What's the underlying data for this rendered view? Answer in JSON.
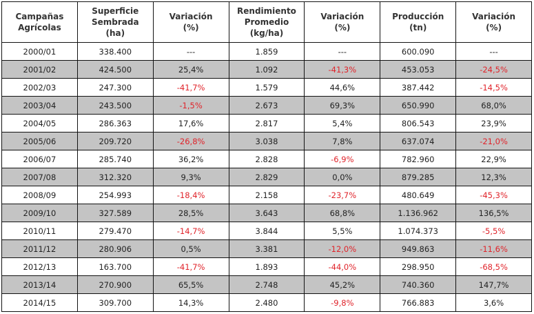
{
  "table": {
    "headers": [
      [
        "Campañas",
        "Agrícolas"
      ],
      [
        "Superficie",
        "Sembrada",
        "(ha)"
      ],
      [
        "Variación",
        "(%)"
      ],
      [
        "Rendimiento",
        "Promedio",
        "(kg/ha)"
      ],
      [
        "Variación",
        "(%)"
      ],
      [
        "Producción",
        "(tn)"
      ],
      [
        "Variación",
        "(%)"
      ]
    ],
    "colors": {
      "negative": "#e0232a",
      "stripe": "#c4c4c4"
    },
    "rows": [
      [
        "2000/01",
        "338.400",
        "---",
        "1.859",
        "---",
        "600.090",
        "---"
      ],
      [
        "2001/02",
        "424.500",
        "25,4%",
        "1.092",
        "-41,3%",
        "453.053",
        "-24,5%"
      ],
      [
        "2002/03",
        "247.300",
        "-41,7%",
        "1.579",
        "44,6%",
        "387.442",
        "-14,5%"
      ],
      [
        "2003/04",
        "243.500",
        "-1,5%",
        "2.673",
        "69,3%",
        "650.990",
        "68,0%"
      ],
      [
        "2004/05",
        "286.363",
        "17,6%",
        "2.817",
        "5,4%",
        "806.543",
        "23,9%"
      ],
      [
        "2005/06",
        "209.720",
        "-26,8%",
        "3.038",
        "7,8%",
        "637.074",
        "-21,0%"
      ],
      [
        "2006/07",
        "285.740",
        "36,2%",
        "2.828",
        "-6,9%",
        "782.960",
        "22,9%"
      ],
      [
        "2007/08",
        "312.320",
        "9,3%",
        "2.829",
        "0,0%",
        "879.285",
        "12,3%"
      ],
      [
        "2008/09",
        "254.993",
        "-18,4%",
        "2.158",
        "-23,7%",
        "480.649",
        "-45,3%"
      ],
      [
        "2009/10",
        "327.589",
        "28,5%",
        "3.643",
        "68,8%",
        "1.136.962",
        "136,5%"
      ],
      [
        "2010/11",
        "279.470",
        "-14,7%",
        "3.844",
        "5,5%",
        "1.074.373",
        "-5,5%"
      ],
      [
        "2011/12",
        "280.906",
        "0,5%",
        "3.381",
        "-12,0%",
        "949.863",
        "-11,6%"
      ],
      [
        "2012/13",
        "163.700",
        "-41,7%",
        "1.893",
        "-44,0%",
        "298.950",
        "-68,5%"
      ],
      [
        "2013/14",
        "270.900",
        "65,5%",
        "2.748",
        "45,2%",
        "740.360",
        "147,7%"
      ],
      [
        "2014/15",
        "309.700",
        "14,3%",
        "2.480",
        "-9,8%",
        "766.883",
        "3,6%"
      ]
    ]
  }
}
